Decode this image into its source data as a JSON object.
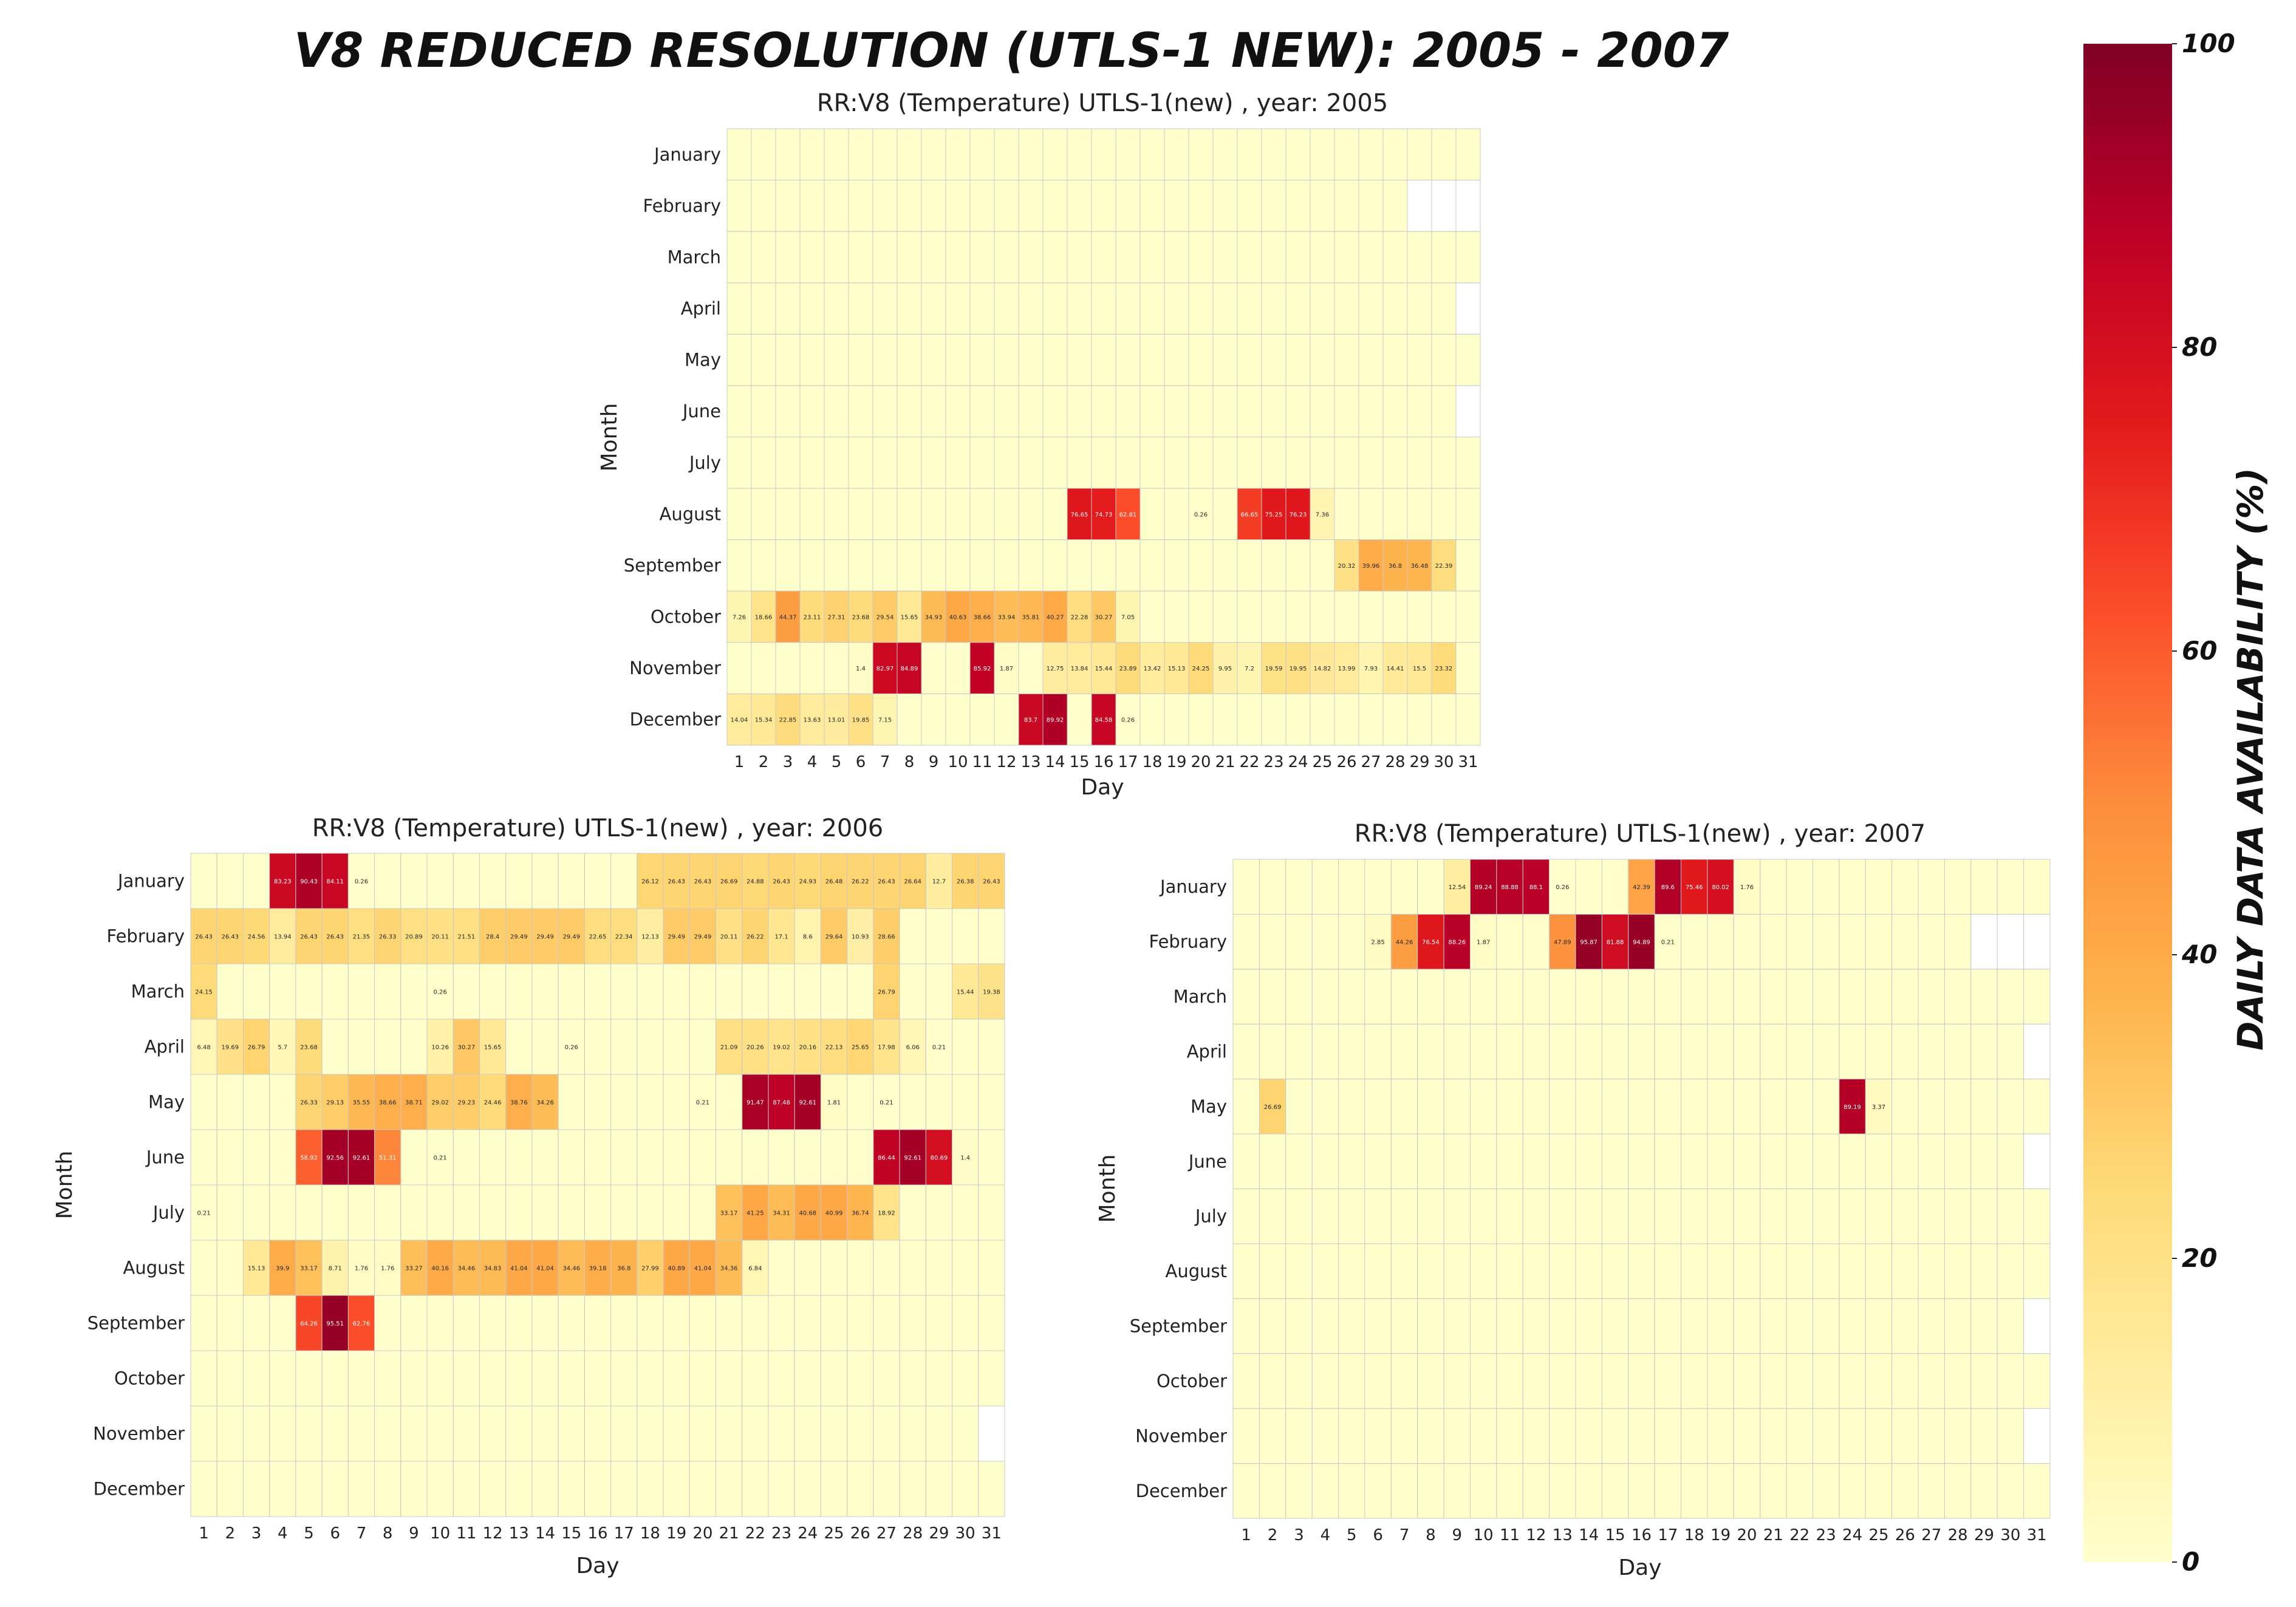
{
  "page": {
    "suptitle": "V8 REDUCED RESOLUTION (UTLS-1 NEW): 2005 - 2007",
    "colorbar_label": "DAILY DATA AVAILABILITY (%)"
  },
  "chart_data": {
    "type": "heatmap",
    "xlabel": "Day",
    "ylabel": "Month",
    "months": [
      "January",
      "February",
      "March",
      "April",
      "May",
      "June",
      "July",
      "August",
      "September",
      "October",
      "November",
      "December"
    ],
    "days": [
      1,
      2,
      3,
      4,
      5,
      6,
      7,
      8,
      9,
      10,
      11,
      12,
      13,
      14,
      15,
      16,
      17,
      18,
      19,
      20,
      21,
      22,
      23,
      24,
      25,
      26,
      27,
      28,
      29,
      30,
      31
    ],
    "colorbar": {
      "vmin": 0,
      "vmax": 100,
      "ticks": [
        0,
        20,
        40,
        60,
        80,
        100
      ],
      "colormap": "YlOrRd"
    },
    "panels": [
      {
        "title": "RR:V8 (Temperature) UTLS-1(new) , year: 2005",
        "year": 2005,
        "missing": [
          [
            2,
            29
          ],
          [
            2,
            30
          ],
          [
            2,
            31
          ],
          [
            4,
            31
          ],
          [
            6,
            31
          ]
        ],
        "values": {
          "8": {
            "15": 76.65,
            "16": 74.73,
            "17": 62.81,
            "20": 0.26,
            "22": 66.65,
            "23": 75.25,
            "24": 76.23,
            "25": 7.36
          },
          "9": {
            "26": 20.32,
            "27": 39.96,
            "28": 36.8,
            "29": 36.48,
            "30": 22.39
          },
          "10": {
            "1": 7.26,
            "2": 18.66,
            "3": 44.37,
            "4": 23.11,
            "5": 27.31,
            "6": 23.68,
            "7": 29.54,
            "8": 15.65,
            "9": 34.93,
            "10": 40.63,
            "11": 38.66,
            "12": 33.94,
            "13": 35.81,
            "14": 40.27,
            "15": 22.28,
            "16": 30.27,
            "17": 7.05
          },
          "11": {
            "6": 1.4,
            "7": 82.97,
            "8": 84.89,
            "11": 85.92,
            "12": 1.87,
            "14": 12.75,
            "15": 13.84,
            "16": 15.44,
            "17": 23.89,
            "18": 13.42,
            "19": 15.13,
            "20": 24.25,
            "21": 9.95,
            "22": 7.2,
            "23": 19.59,
            "24": 19.95,
            "25": 14.82,
            "26": 13.99,
            "27": 7.93,
            "28": 14.41,
            "29": 15.5,
            "30": 23.32
          },
          "12": {
            "1": 14.04,
            "2": 15.34,
            "3": 22.85,
            "4": 13.63,
            "5": 13.01,
            "6": 19.85,
            "7": 7.15,
            "13": 83.7,
            "14": 89.92,
            "16": 84.58,
            "17": 0.26
          }
        }
      },
      {
        "title": "RR:V8 (Temperature) UTLS-1(new) , year: 2006",
        "year": 2006,
        "missing": [
          [
            11,
            31
          ]
        ],
        "values": {
          "1": {
            "4": 83.23,
            "5": 90.43,
            "6": 84.11,
            "7": 0.26,
            "18": 26.12,
            "19": 26.43,
            "20": 26.43,
            "21": 26.69,
            "22": 24.88,
            "23": 26.43,
            "24": 24.93,
            "25": 26.48,
            "26": 26.22,
            "27": 26.43,
            "28": 26.64,
            "29": 12.7,
            "30": 26.38,
            "31": 26.43
          },
          "2": {
            "1": 26.43,
            "2": 26.43,
            "3": 24.56,
            "4": 13.94,
            "5": 26.43,
            "6": 26.43,
            "7": 21.35,
            "8": 26.33,
            "9": 20.89,
            "10": 20.11,
            "11": 21.51,
            "12": 28.4,
            "13": 29.49,
            "14": 29.49,
            "15": 29.49,
            "16": 22.65,
            "17": 22.34,
            "18": 12.13,
            "19": 29.49,
            "20": 29.49,
            "21": 20.11,
            "22": 26.22,
            "23": 17.1,
            "24": 8.6,
            "25": 29.64,
            "26": 10.93,
            "27": 28.66
          },
          "3": {
            "1": 24.15,
            "10": 0.26,
            "27": 26.79,
            "30": 15.44,
            "31": 19.38
          },
          "4": {
            "1": 6.48,
            "2": 19.69,
            "3": 26.79,
            "4": 5.7,
            "5": 23.68,
            "10": 10.26,
            "11": 30.27,
            "12": 15.65,
            "15": 0.26,
            "21": 21.09,
            "22": 20.26,
            "23": 19.02,
            "24": 20.16,
            "25": 22.13,
            "26": 25.65,
            "27": 17.98,
            "28": 6.06,
            "29": 0.21
          },
          "5": {
            "5": 26.33,
            "6": 29.13,
            "7": 35.55,
            "8": 38.66,
            "9": 38.71,
            "10": 29.02,
            "11": 29.23,
            "12": 24.46,
            "13": 38.76,
            "14": 34.26,
            "20": 0.21,
            "22": 91.47,
            "23": 87.48,
            "24": 92.61,
            "25": 1.81,
            "27": 0.21
          },
          "6": {
            "5": 58.92,
            "6": 92.56,
            "7": 92.61,
            "8": 51.31,
            "10": 0.21,
            "27": 86.44,
            "28": 92.61,
            "29": 80.69,
            "30": 1.4
          },
          "7": {
            "1": 0.21,
            "21": 33.17,
            "22": 41.25,
            "23": 34.31,
            "24": 40.68,
            "25": 40.99,
            "26": 36.74,
            "27": 18.92
          },
          "8": {
            "3": 15.13,
            "4": 39.9,
            "5": 33.17,
            "6": 8.71,
            "7": 1.76,
            "8": 1.76,
            "9": 33.27,
            "10": 40.16,
            "11": 34.46,
            "12": 34.83,
            "13": 41.04,
            "14": 41.04,
            "15": 34.46,
            "16": 39.18,
            "17": 36.8,
            "18": 27.99,
            "19": 40.89,
            "20": 41.04,
            "21": 34.36,
            "22": 6.84
          },
          "9": {
            "5": 64.26,
            "6": 95.51,
            "7": 62.76
          }
        }
      },
      {
        "title": "RR:V8 (Temperature) UTLS-1(new) , year: 2007",
        "year": 2007,
        "missing": [
          [
            2,
            29
          ],
          [
            2,
            30
          ],
          [
            2,
            31
          ],
          [
            4,
            31
          ],
          [
            6,
            31
          ],
          [
            9,
            31
          ],
          [
            11,
            31
          ]
        ],
        "values": {
          "1": {
            "9": 12.54,
            "10": 89.24,
            "11": 88.88,
            "12": 88.1,
            "13": 0.26,
            "16": 42.39,
            "17": 89.6,
            "18": 75.46,
            "19": 80.02,
            "20": 1.76
          },
          "2": {
            "6": 2.85,
            "7": 44.26,
            "8": 76.54,
            "9": 88.26,
            "10": 1.87,
            "13": 47.89,
            "14": 95.87,
            "15": 81.88,
            "16": 94.89,
            "17": 0.21
          },
          "5": {
            "2": 26.69,
            "24": 89.19,
            "25": 3.37
          }
        }
      }
    ]
  }
}
